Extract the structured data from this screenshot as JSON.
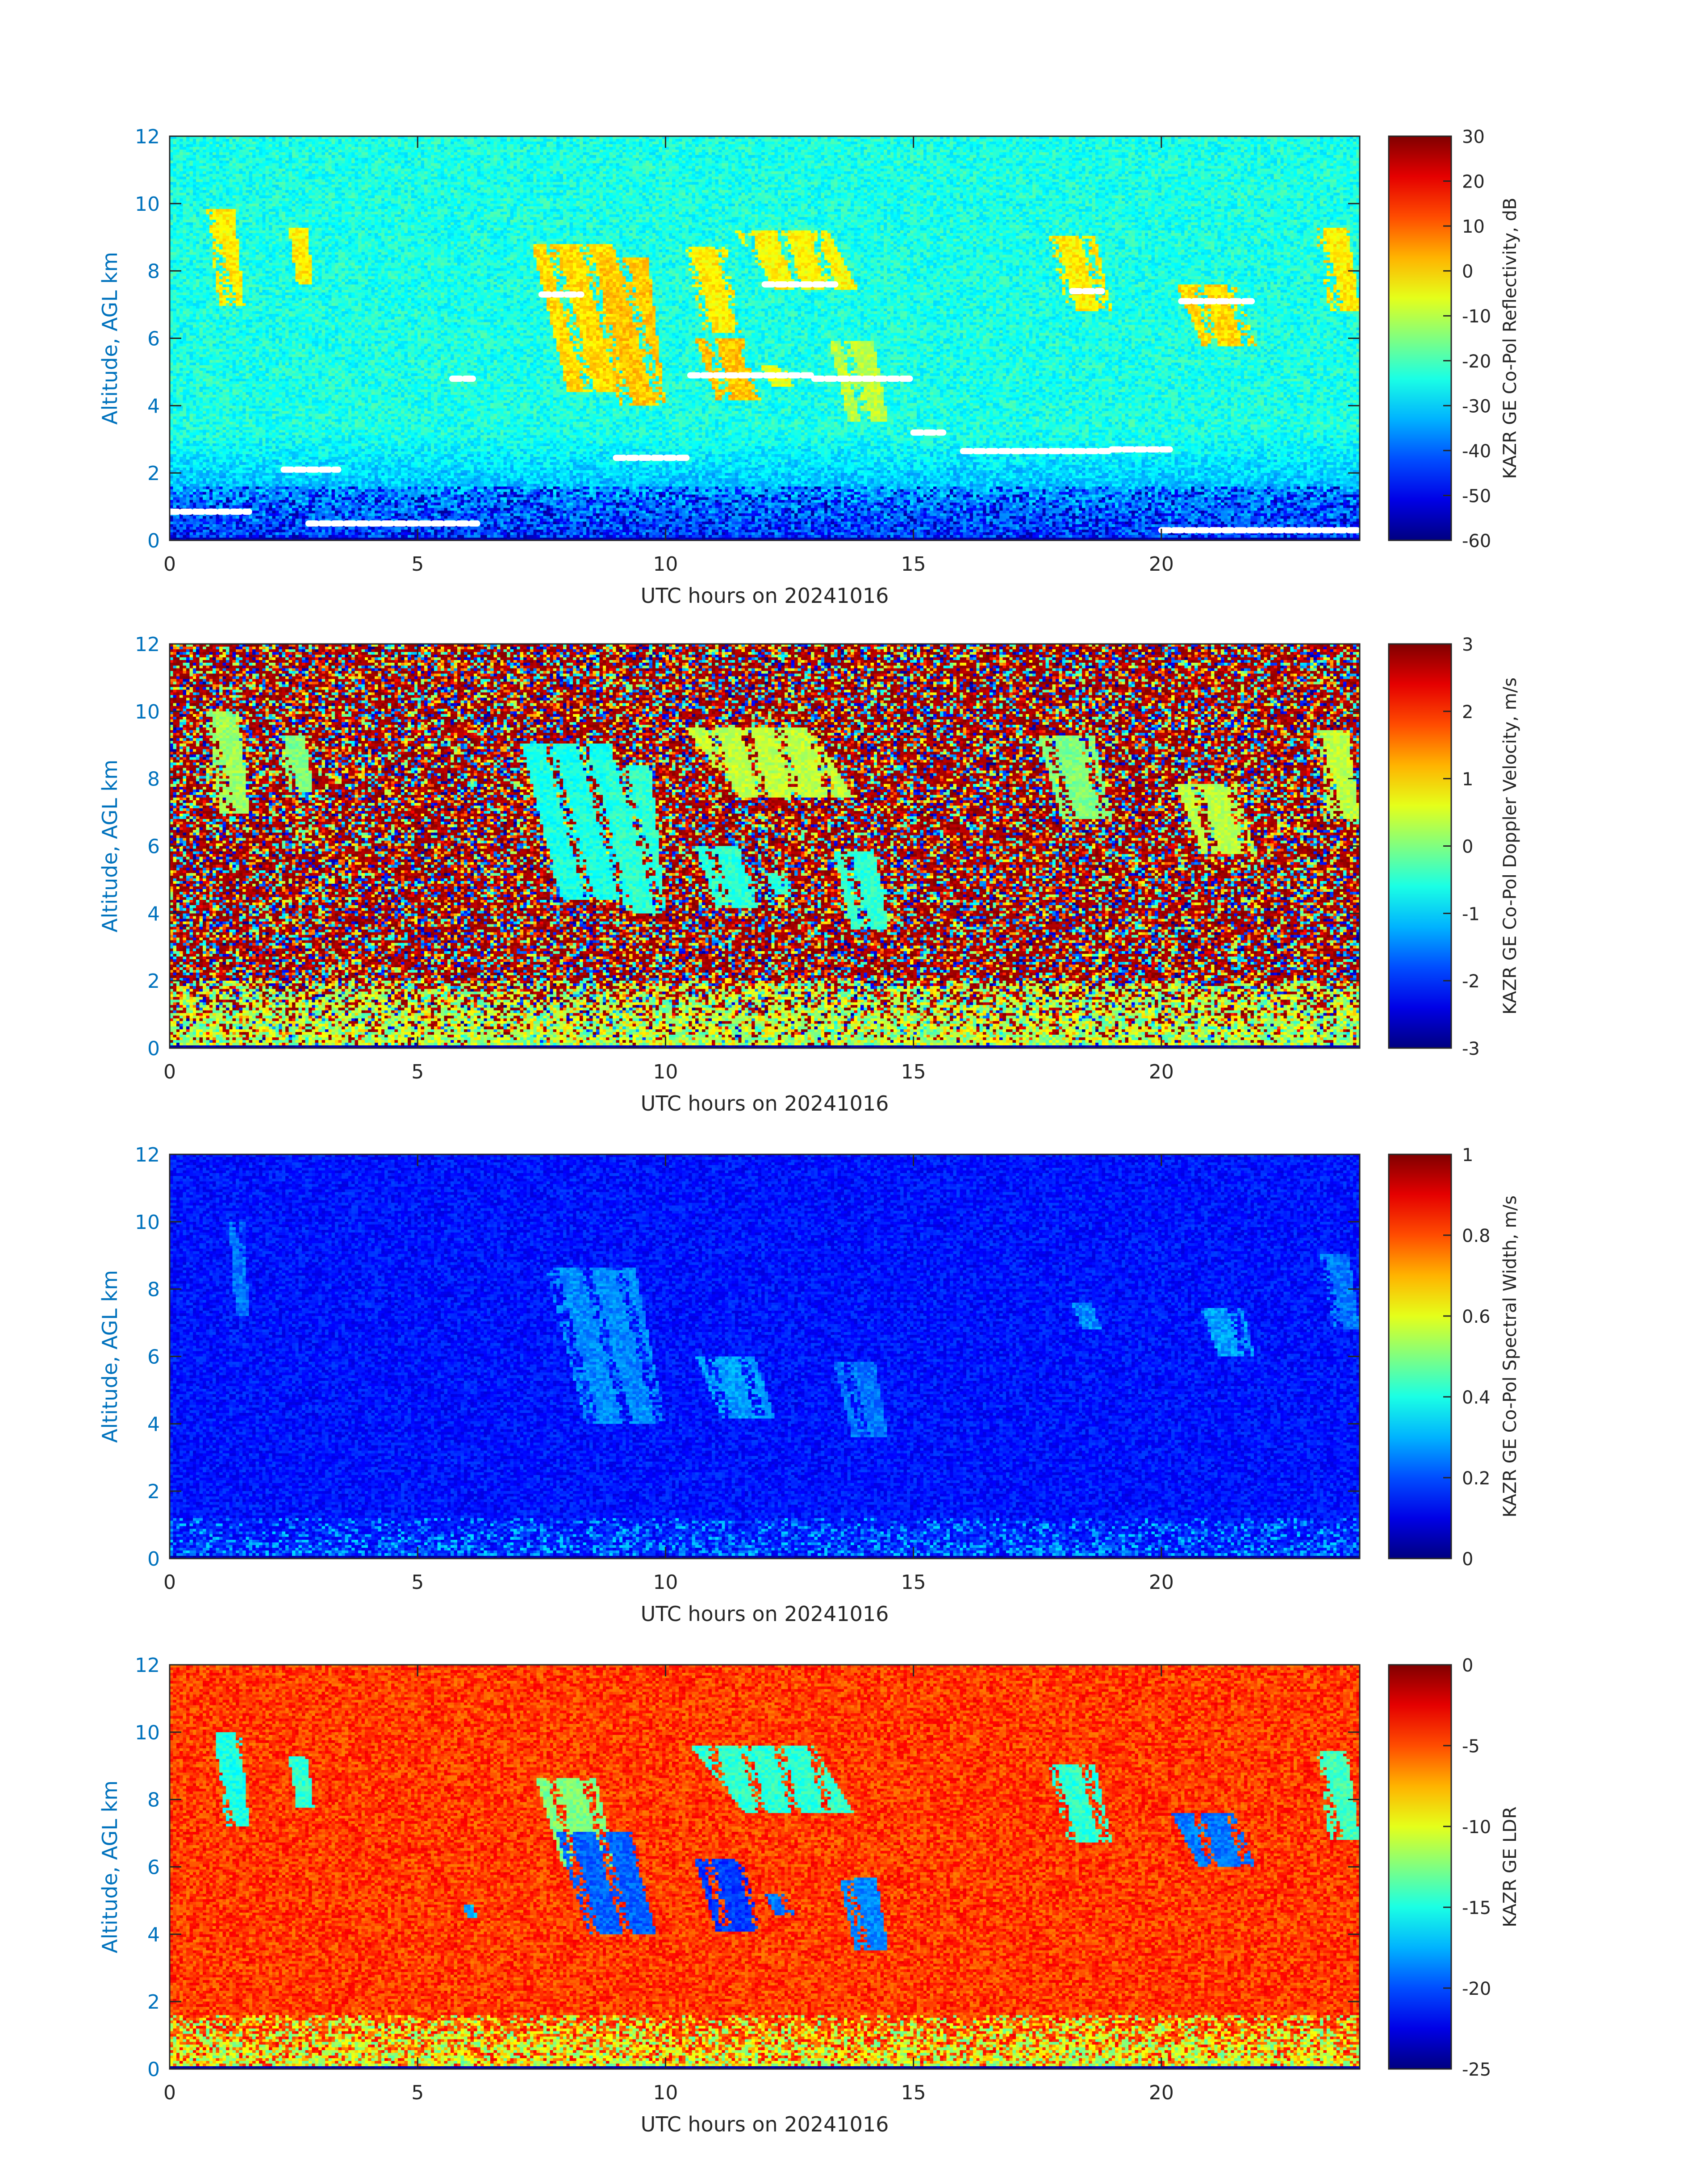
{
  "chart_data": [
    {
      "type": "heatmap",
      "title": "",
      "xlabel": "UTC hours on 20241016",
      "ylabel": "Altitude, AGL km",
      "xlim": [
        0,
        24
      ],
      "ylim": [
        0,
        12
      ],
      "x_ticks": [
        0,
        5,
        10,
        15,
        20
      ],
      "y_ticks": [
        0,
        2,
        4,
        6,
        8,
        10,
        12
      ],
      "colorbar": {
        "label": "KAZR GE Co-Pol Reflectivity, dB",
        "range": [
          -60,
          30
        ],
        "ticks": [
          "30",
          "20",
          "10",
          "0",
          "-10",
          "-20",
          "-30",
          "-40",
          "-50",
          "-60"
        ],
        "colormap": "jet"
      },
      "background_value": 0.4,
      "noise": 0.06,
      "clouds": [
        {
          "x0": 0.75,
          "x1": 1.5,
          "ytop": 9.8,
          "ybot": 7.0,
          "value": 0.64
        },
        {
          "x0": 2.4,
          "x1": 2.9,
          "ytop": 9.3,
          "ybot": 7.6,
          "value": 0.64
        },
        {
          "x0": 7.3,
          "x1": 9.5,
          "ytop": 8.8,
          "ybot": 4.4,
          "value": 0.66
        },
        {
          "x0": 8.6,
          "x1": 10.0,
          "ytop": 8.4,
          "ybot": 4.0,
          "value": 0.68
        },
        {
          "x0": 10.4,
          "x1": 11.5,
          "ytop": 8.7,
          "ybot": 6.2,
          "value": 0.64
        },
        {
          "x0": 10.6,
          "x1": 11.9,
          "ytop": 6.0,
          "ybot": 4.2,
          "value": 0.68
        },
        {
          "x0": 11.4,
          "x1": 13.9,
          "ytop": 9.2,
          "ybot": 7.4,
          "value": 0.63
        },
        {
          "x0": 11.9,
          "x1": 12.6,
          "ytop": 5.2,
          "ybot": 4.6,
          "value": 0.6
        },
        {
          "x0": 13.3,
          "x1": 14.5,
          "ytop": 5.9,
          "ybot": 3.5,
          "value": 0.56
        },
        {
          "x0": 17.7,
          "x1": 19.0,
          "ytop": 9.0,
          "ybot": 6.8,
          "value": 0.64
        },
        {
          "x0": 20.3,
          "x1": 21.9,
          "ytop": 7.6,
          "ybot": 5.8,
          "value": 0.66
        },
        {
          "x0": 23.1,
          "x1": 24.0,
          "ytop": 9.3,
          "ybot": 6.8,
          "value": 0.64
        }
      ],
      "near_surface": {
        "from": 0.0,
        "to": 1.6,
        "value": 0.15
      },
      "markers": [
        {
          "x0": 0.0,
          "x1": 1.6,
          "y": 0.85
        },
        {
          "x0": 2.3,
          "x1": 3.4,
          "y": 2.1
        },
        {
          "x0": 5.7,
          "x1": 6.2,
          "y": 4.8
        },
        {
          "x0": 9.0,
          "x1": 10.5,
          "y": 2.45
        },
        {
          "x0": 10.5,
          "x1": 13.0,
          "y": 4.9
        },
        {
          "x0": 13.0,
          "x1": 15.0,
          "y": 4.8
        },
        {
          "x0": 15.0,
          "x1": 15.6,
          "y": 3.2
        },
        {
          "x0": 16.0,
          "x1": 19.0,
          "y": 2.65
        },
        {
          "x0": 19.0,
          "x1": 20.2,
          "y": 2.7
        },
        {
          "x0": 20.4,
          "x1": 21.9,
          "y": 7.1
        },
        {
          "x0": 18.2,
          "x1": 18.8,
          "y": 7.4
        },
        {
          "x0": 20.0,
          "x1": 24.0,
          "y": 0.3
        },
        {
          "x0": 2.8,
          "x1": 6.2,
          "y": 0.5
        },
        {
          "x0": 7.5,
          "x1": 8.3,
          "y": 7.3
        },
        {
          "x0": 12.0,
          "x1": 13.5,
          "y": 7.6
        }
      ]
    },
    {
      "type": "heatmap",
      "title": "",
      "xlabel": "UTC hours on 20241016",
      "ylabel": "Altitude, AGL km",
      "xlim": [
        0,
        24
      ],
      "ylim": [
        0,
        12
      ],
      "x_ticks": [
        0,
        5,
        10,
        15,
        20
      ],
      "y_ticks": [
        0,
        2,
        4,
        6,
        8,
        10,
        12
      ],
      "colorbar": {
        "label": "KAZR GE Co-Pol Doppler Velocity, m/s",
        "range": [
          -3,
          3
        ],
        "ticks": [
          "3",
          "2",
          "1",
          "0",
          "-1",
          "-2",
          "-3"
        ],
        "colormap": "jet"
      },
      "background_value": "random",
      "noise": 1.0,
      "clouds": [
        {
          "x0": 0.75,
          "x1": 1.6,
          "ytop": 10.0,
          "ybot": 7.0,
          "value": 0.53
        },
        {
          "x0": 2.2,
          "x1": 2.9,
          "ytop": 9.3,
          "ybot": 7.6,
          "value": 0.5
        },
        {
          "x0": 7.1,
          "x1": 9.5,
          "ytop": 9.0,
          "ybot": 4.4,
          "value": 0.4
        },
        {
          "x0": 8.8,
          "x1": 10.0,
          "ytop": 8.4,
          "ybot": 4.0,
          "value": 0.42
        },
        {
          "x0": 10.6,
          "x1": 11.9,
          "ytop": 6.0,
          "ybot": 4.2,
          "value": 0.42
        },
        {
          "x0": 10.4,
          "x1": 13.8,
          "ytop": 9.5,
          "ybot": 7.4,
          "value": 0.56
        },
        {
          "x0": 12.0,
          "x1": 12.6,
          "ytop": 5.2,
          "ybot": 4.6,
          "value": 0.42
        },
        {
          "x0": 13.4,
          "x1": 14.5,
          "ytop": 5.8,
          "ybot": 3.5,
          "value": 0.42
        },
        {
          "x0": 17.5,
          "x1": 19.0,
          "ytop": 9.3,
          "ybot": 6.8,
          "value": 0.5
        },
        {
          "x0": 20.3,
          "x1": 21.9,
          "ytop": 7.8,
          "ybot": 5.8,
          "value": 0.56
        },
        {
          "x0": 23.1,
          "x1": 24.0,
          "ytop": 9.4,
          "ybot": 6.8,
          "value": 0.56
        }
      ],
      "near_surface": {
        "from": 0.0,
        "to": 2.0,
        "value": 0.55
      }
    },
    {
      "type": "heatmap",
      "title": "",
      "xlabel": "UTC hours on 20241016",
      "ylabel": "Altitude, AGL km",
      "xlim": [
        0,
        24
      ],
      "ylim": [
        0,
        12
      ],
      "x_ticks": [
        0,
        5,
        10,
        15,
        20
      ],
      "y_ticks": [
        0,
        2,
        4,
        6,
        8,
        10,
        12
      ],
      "colorbar": {
        "label": "KAZR GE Co-Pol Spectral Width, m/s",
        "range": [
          0,
          1
        ],
        "ticks": [
          "1",
          "0.8",
          "0.6",
          "0.4",
          "0.2",
          "0"
        ],
        "colormap": "jet"
      },
      "background_value": 0.14,
      "noise": 0.05,
      "clouds": [
        {
          "x0": 1.2,
          "x1": 1.6,
          "ytop": 10.0,
          "ybot": 7.2,
          "value": 0.24
        },
        {
          "x0": 7.6,
          "x1": 10.0,
          "ytop": 8.6,
          "ybot": 4.0,
          "value": 0.26
        },
        {
          "x0": 10.6,
          "x1": 12.2,
          "ytop": 6.0,
          "ybot": 4.2,
          "value": 0.28
        },
        {
          "x0": 13.4,
          "x1": 14.5,
          "ytop": 5.8,
          "ybot": 3.6,
          "value": 0.24
        },
        {
          "x0": 18.2,
          "x1": 18.8,
          "ytop": 7.6,
          "ybot": 6.8,
          "value": 0.26
        },
        {
          "x0": 20.8,
          "x1": 21.9,
          "ytop": 7.4,
          "ybot": 6.0,
          "value": 0.28
        },
        {
          "x0": 23.2,
          "x1": 24.0,
          "ytop": 9.0,
          "ybot": 6.8,
          "value": 0.24
        }
      ],
      "near_surface": {
        "from": 0.0,
        "to": 1.2,
        "value": 0.22
      }
    },
    {
      "type": "heatmap",
      "title": "",
      "xlabel": "UTC hours on 20241016",
      "ylabel": "Altitude, AGL km",
      "xlim": [
        0,
        24
      ],
      "ylim": [
        0,
        12
      ],
      "x_ticks": [
        0,
        5,
        10,
        15,
        20
      ],
      "y_ticks": [
        0,
        2,
        4,
        6,
        8,
        10,
        12
      ],
      "colorbar": {
        "label": "KAZR GE LDR",
        "range": [
          -25,
          0
        ],
        "ticks": [
          "0",
          "-5",
          "-10",
          "-15",
          "-20",
          "-25"
        ],
        "colormap": "jet"
      },
      "background_value": 0.82,
      "noise": 0.07,
      "clouds": [
        {
          "x0": 0.9,
          "x1": 1.6,
          "ytop": 10.0,
          "ybot": 7.2,
          "value": 0.4
        },
        {
          "x0": 2.4,
          "x1": 2.9,
          "ytop": 9.3,
          "ybot": 7.8,
          "value": 0.42
        },
        {
          "x0": 7.4,
          "x1": 9.0,
          "ytop": 8.6,
          "ybot": 6.0,
          "value": 0.5
        },
        {
          "x0": 7.8,
          "x1": 9.8,
          "ytop": 7.0,
          "ybot": 4.0,
          "value": 0.22
        },
        {
          "x0": 10.6,
          "x1": 11.9,
          "ytop": 6.2,
          "ybot": 4.1,
          "value": 0.18
        },
        {
          "x0": 10.5,
          "x1": 13.8,
          "ytop": 9.6,
          "ybot": 7.6,
          "value": 0.42
        },
        {
          "x0": 12.0,
          "x1": 12.6,
          "ytop": 5.2,
          "ybot": 4.6,
          "value": 0.24
        },
        {
          "x0": 13.5,
          "x1": 14.5,
          "ytop": 5.7,
          "ybot": 3.5,
          "value": 0.26
        },
        {
          "x0": 17.7,
          "x1": 19.0,
          "ytop": 9.0,
          "ybot": 6.7,
          "value": 0.42
        },
        {
          "x0": 20.2,
          "x1": 21.9,
          "ytop": 7.6,
          "ybot": 6.0,
          "value": 0.24
        },
        {
          "x0": 23.1,
          "x1": 24.0,
          "ytop": 9.4,
          "ybot": 6.8,
          "value": 0.44
        },
        {
          "x0": 5.9,
          "x1": 6.2,
          "ytop": 4.9,
          "ybot": 4.5,
          "value": 0.3
        }
      ],
      "near_surface": {
        "from": 0.0,
        "to": 1.6,
        "value": 0.58
      }
    }
  ]
}
